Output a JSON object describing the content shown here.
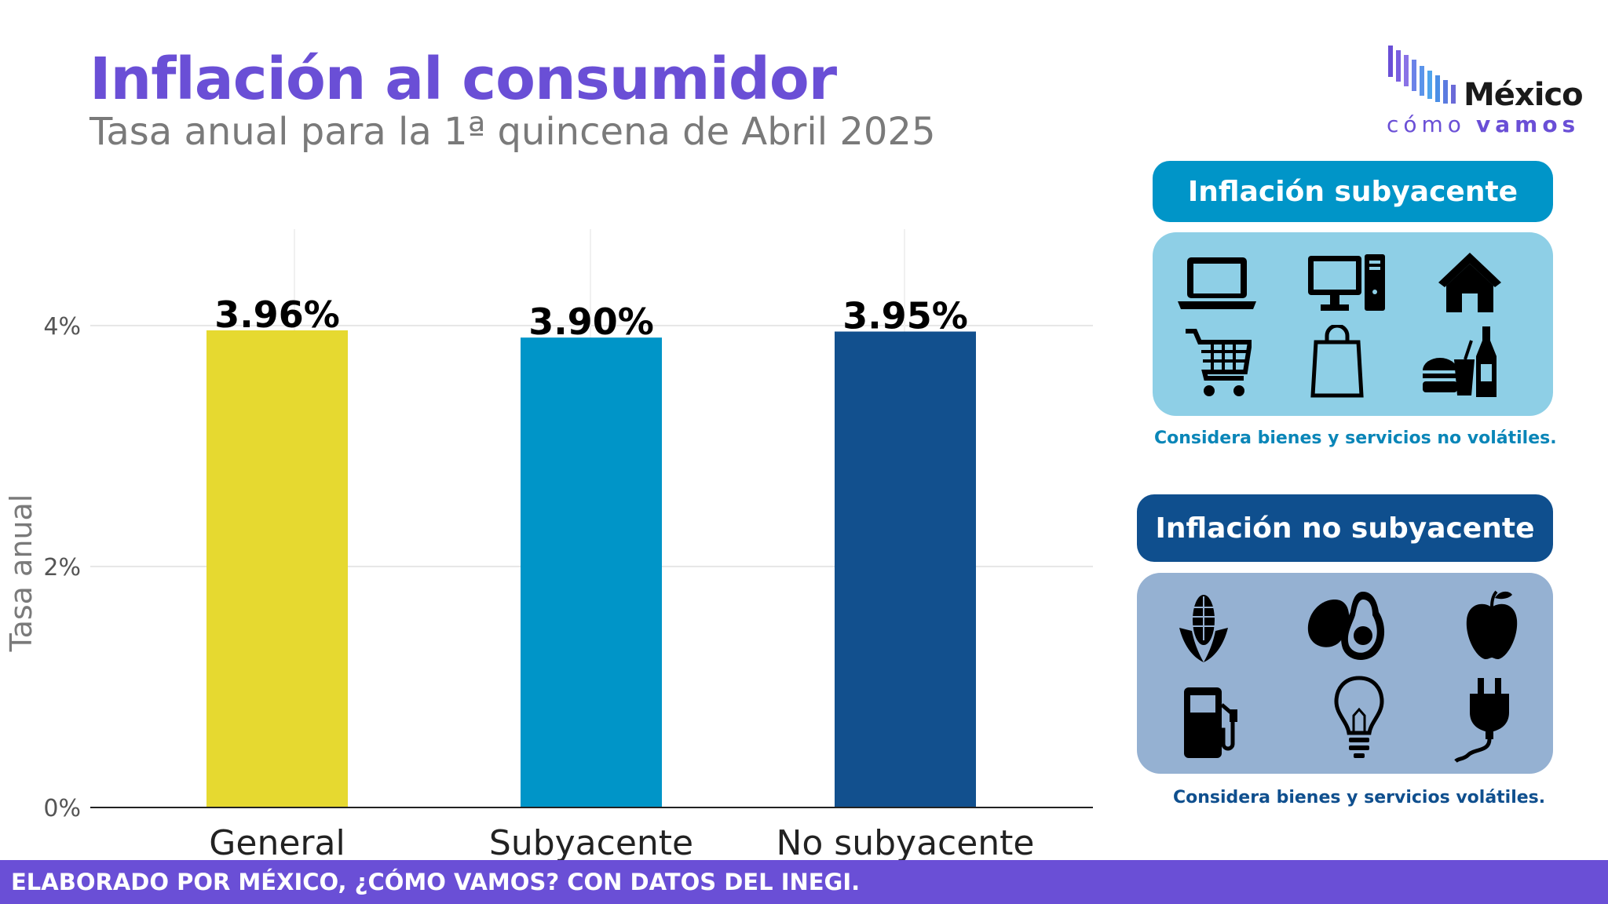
{
  "header": {
    "title": "Inflación al consumidor",
    "subtitle": "Tasa anual para la 1ª quincena de Abril 2025"
  },
  "logo": {
    "main": "México",
    "como": "cómo",
    "vamos": "vamos"
  },
  "chart_data": {
    "type": "bar",
    "categories": [
      "General",
      "Subyacente",
      "No subyacente"
    ],
    "values": [
      3.96,
      3.9,
      3.95
    ],
    "value_labels": [
      "3.96%",
      "3.90%",
      "3.95%"
    ],
    "colors": [
      "#e6d930",
      "#0095c8",
      "#12508e"
    ],
    "ylabel": "Tasa anual",
    "ylim": [
      0,
      4.8
    ],
    "yticks": [
      0,
      2,
      4
    ],
    "ytick_labels": [
      "0%",
      "2%",
      "4%"
    ],
    "grid": true
  },
  "panels": {
    "subyacente": {
      "title": "Inflación subyacente",
      "note": "Considera bienes y servicios no volátiles.",
      "color": "#0095c8",
      "icons": [
        "laptop-icon",
        "desktop-computer-icon",
        "house-icon",
        "shopping-cart-icon",
        "shopping-bag-icon",
        "fast-food-icon"
      ]
    },
    "no_subyacente": {
      "title": "Inflación no subyacente",
      "note": "Considera bienes y servicios volátiles.",
      "color": "#0f4f8e",
      "icons": [
        "corn-icon",
        "avocado-icon",
        "apple-icon",
        "fuel-pump-icon",
        "light-bulb-icon",
        "electric-plug-icon"
      ]
    }
  },
  "footer": {
    "text": "ELABORADO POR MÉXICO, ¿CÓMO VAMOS? CON DATOS DEL INEGI."
  }
}
